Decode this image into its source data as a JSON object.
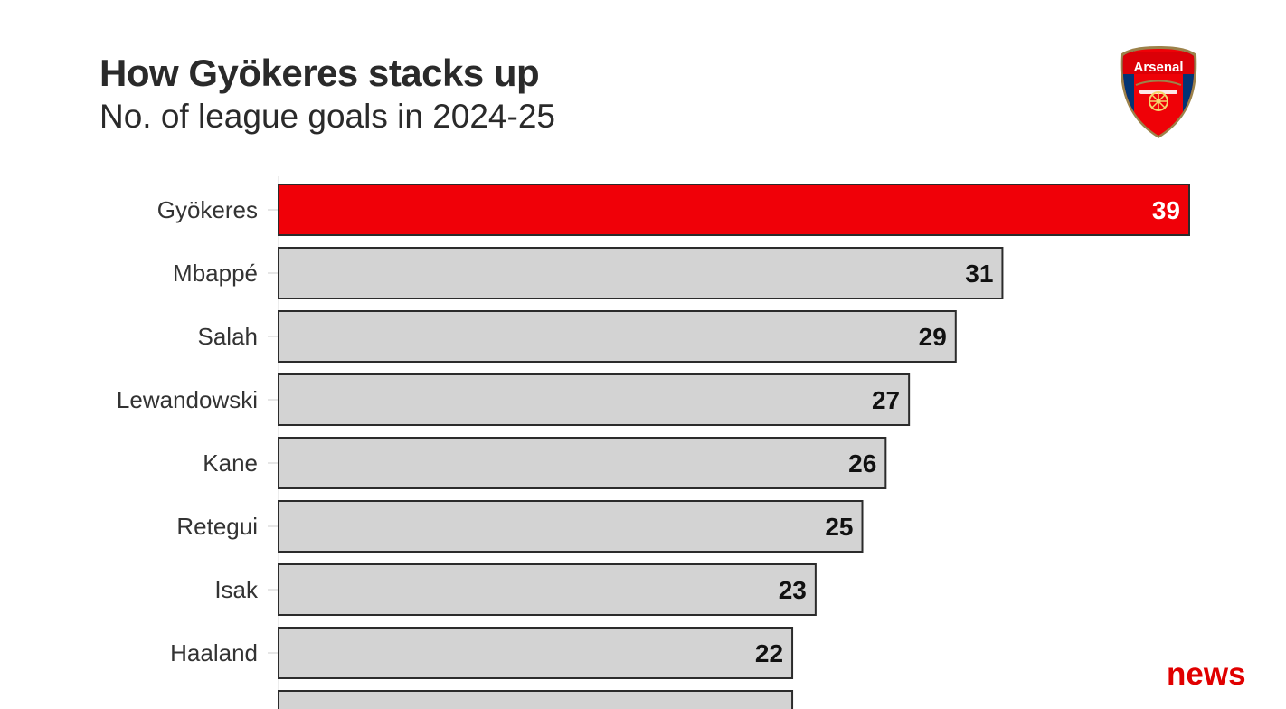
{
  "header": {
    "title": "How Gyökeres stacks up",
    "subtitle": "No. of league goals in 2024-25"
  },
  "badge": {
    "icon": "arsenal-crest-icon",
    "text": "Arsenal"
  },
  "watermark": {
    "text": "news"
  },
  "colors": {
    "highlight": "#f00008",
    "bar": "#d3d3d3",
    "bar_border": "#2b2b2b"
  },
  "chart_data": {
    "type": "bar",
    "orientation": "horizontal",
    "categories": [
      "Gyökeres",
      "Mbappé",
      "Salah",
      "Lewandowski",
      "Kane",
      "Retegui",
      "Isak",
      "Haaland",
      ""
    ],
    "values": [
      39,
      31,
      29,
      27,
      26,
      25,
      23,
      22,
      22
    ],
    "data_labels": [
      "39",
      "31",
      "29",
      "27",
      "26",
      "25",
      "23",
      "22",
      ""
    ],
    "highlight_index": 0,
    "xlim": [
      0,
      39
    ],
    "grid": false,
    "legend": "none"
  }
}
